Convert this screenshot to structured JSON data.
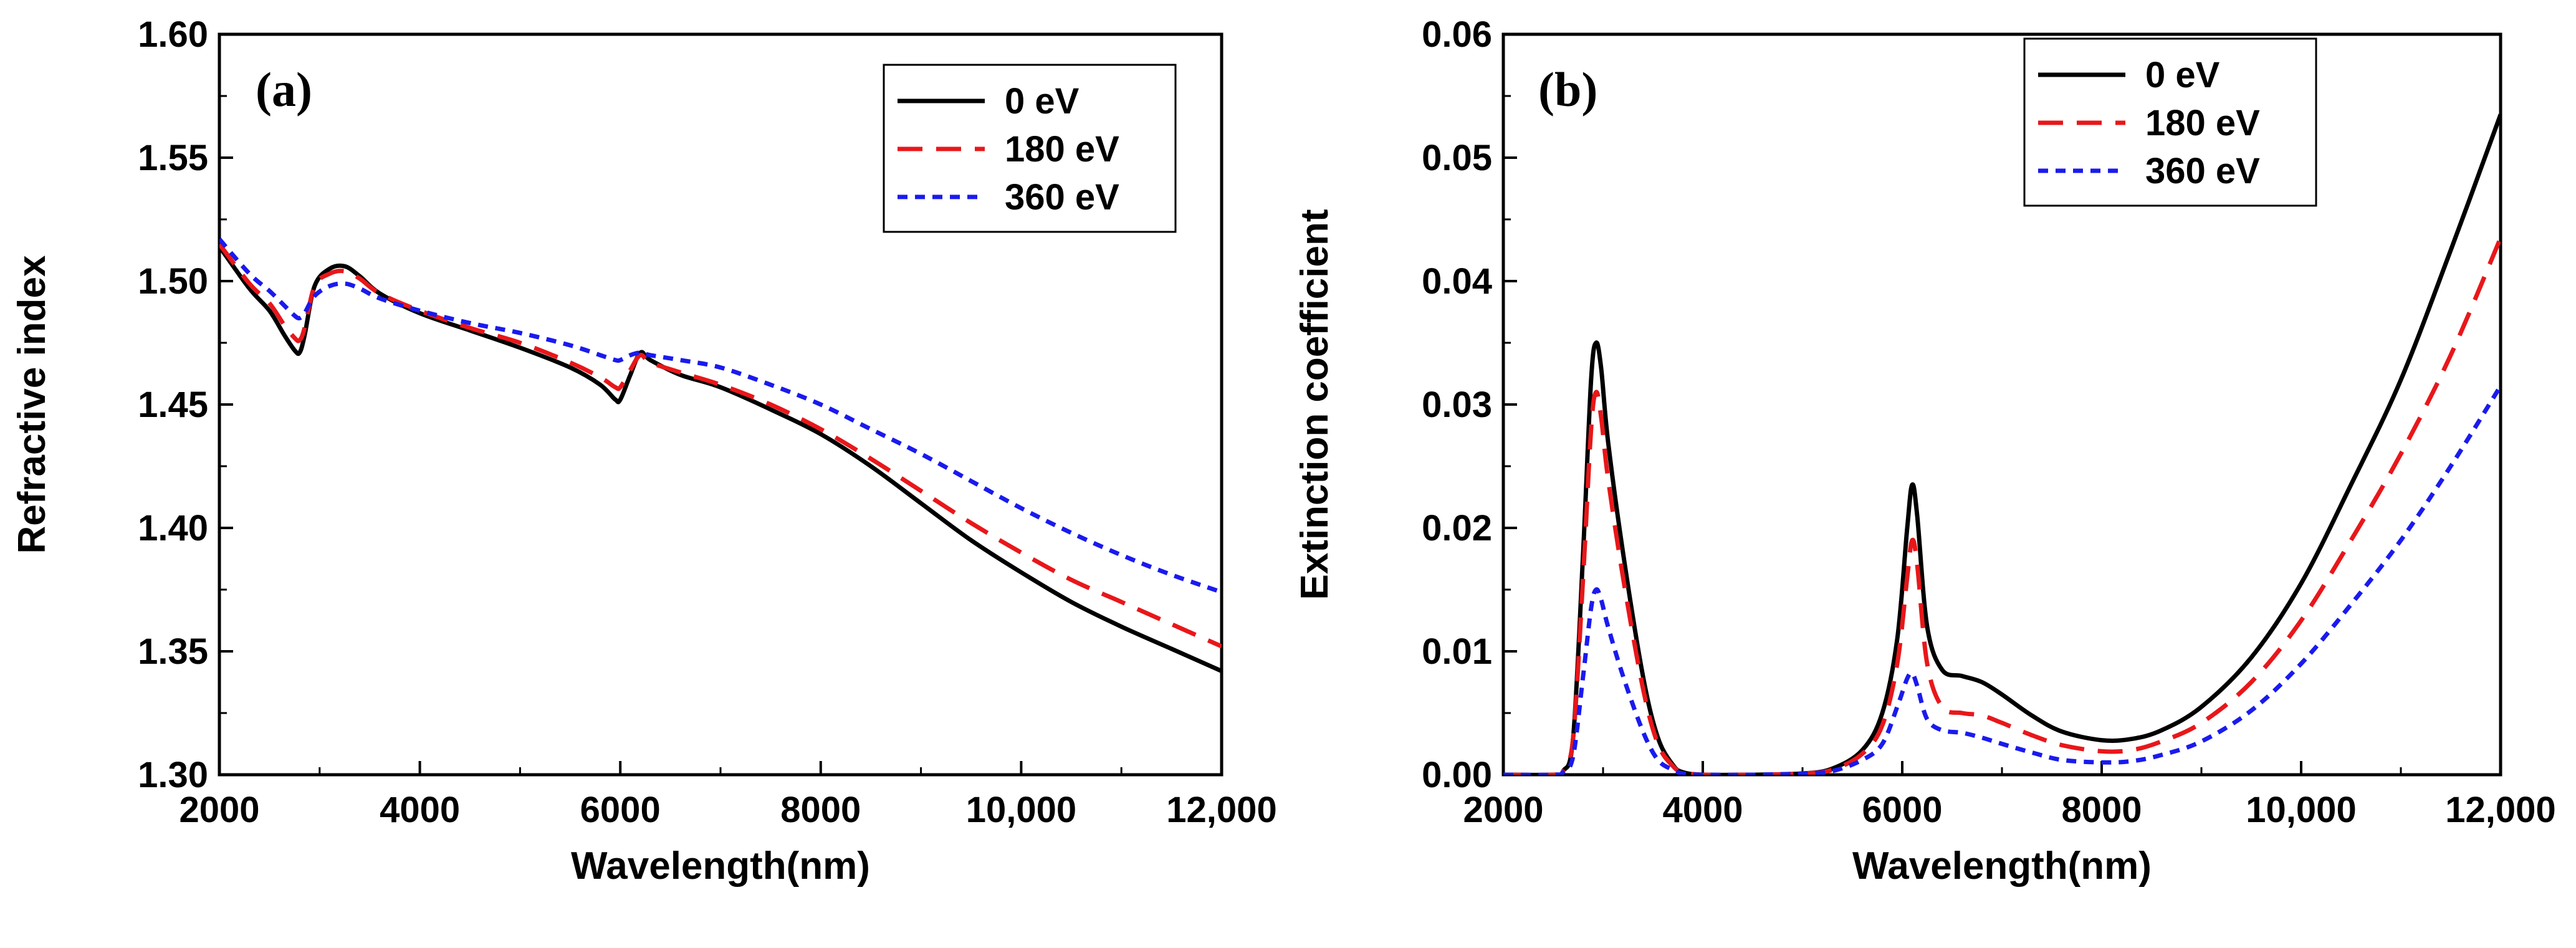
{
  "chart_data": [
    {
      "type": "line",
      "panel_label": "(a)",
      "xlabel": "Wavelength(nm)",
      "ylabel": "Refractive index",
      "xlim": [
        2000,
        12000
      ],
      "ylim": [
        1.3,
        1.6
      ],
      "xticks": [
        2000,
        4000,
        6000,
        8000,
        10000,
        12000
      ],
      "xtick_labels": [
        "2000",
        "4000",
        "6000",
        "8000",
        "10,000",
        "12,000"
      ],
      "yticks": [
        1.3,
        1.35,
        1.4,
        1.45,
        1.5,
        1.55,
        1.6
      ],
      "ytick_labels": [
        "1.30",
        "1.35",
        "1.40",
        "1.45",
        "1.50",
        "1.55",
        "1.60"
      ],
      "legend_position": "top-right",
      "series": [
        {
          "name": "0 eV",
          "color": "#000000",
          "dash": "solid",
          "x": [
            2000,
            2300,
            2500,
            2650,
            2750,
            2800,
            2850,
            2950,
            3100,
            3250,
            3400,
            3600,
            4000,
            4500,
            5000,
            5500,
            5800,
            5950,
            6000,
            6100,
            6200,
            6300,
            6600,
            7000,
            7500,
            8000,
            8500,
            9000,
            9500,
            10000,
            10500,
            11000,
            11500,
            12000
          ],
          "y": [
            1.514,
            1.497,
            1.488,
            1.478,
            1.472,
            1.471,
            1.478,
            1.498,
            1.505,
            1.506,
            1.502,
            1.495,
            1.487,
            1.48,
            1.473,
            1.465,
            1.458,
            1.452,
            1.452,
            1.462,
            1.471,
            1.468,
            1.462,
            1.457,
            1.448,
            1.438,
            1.425,
            1.41,
            1.395,
            1.382,
            1.37,
            1.36,
            1.351,
            1.342
          ]
        },
        {
          "name": "180 eV",
          "color": "#e8171a",
          "dash": "long-dash",
          "x": [
            2000,
            2300,
            2500,
            2650,
            2750,
            2800,
            2850,
            2950,
            3100,
            3250,
            3400,
            3600,
            4000,
            4500,
            5000,
            5500,
            5800,
            5950,
            6000,
            6100,
            6200,
            6300,
            6600,
            7000,
            7500,
            8000,
            8500,
            9000,
            9500,
            10000,
            10500,
            11000,
            11500,
            12000
          ],
          "y": [
            1.515,
            1.499,
            1.491,
            1.482,
            1.477,
            1.476,
            1.481,
            1.498,
            1.503,
            1.504,
            1.501,
            1.495,
            1.488,
            1.481,
            1.475,
            1.467,
            1.461,
            1.457,
            1.457,
            1.464,
            1.47,
            1.467,
            1.463,
            1.458,
            1.45,
            1.44,
            1.428,
            1.415,
            1.402,
            1.39,
            1.379,
            1.37,
            1.361,
            1.352
          ]
        },
        {
          "name": "360 eV",
          "color": "#1a1aee",
          "dash": "short-dash",
          "x": [
            2000,
            2300,
            2500,
            2650,
            2750,
            2800,
            2850,
            2950,
            3100,
            3250,
            3400,
            3600,
            4000,
            4500,
            5000,
            5500,
            5800,
            5950,
            6000,
            6100,
            6200,
            6300,
            6600,
            7000,
            7500,
            8000,
            8500,
            9000,
            9500,
            10000,
            10500,
            11000,
            11500,
            12000
          ],
          "y": [
            1.517,
            1.503,
            1.496,
            1.49,
            1.486,
            1.485,
            1.487,
            1.494,
            1.498,
            1.499,
            1.497,
            1.493,
            1.488,
            1.483,
            1.479,
            1.474,
            1.47,
            1.468,
            1.468,
            1.47,
            1.471,
            1.47,
            1.468,
            1.465,
            1.458,
            1.45,
            1.44,
            1.43,
            1.419,
            1.408,
            1.398,
            1.389,
            1.381,
            1.374
          ]
        }
      ]
    },
    {
      "type": "line",
      "panel_label": "(b)",
      "xlabel": "Wavelength(nm)",
      "ylabel": "Extinction coefficient",
      "xlim": [
        2000,
        12000
      ],
      "ylim": [
        0.0,
        0.06
      ],
      "xticks": [
        2000,
        4000,
        6000,
        8000,
        10000,
        12000
      ],
      "xtick_labels": [
        "2000",
        "4000",
        "6000",
        "8000",
        "10,000",
        "12,000"
      ],
      "yticks": [
        0.0,
        0.01,
        0.02,
        0.03,
        0.04,
        0.05,
        0.06
      ],
      "ytick_labels": [
        "0.00",
        "0.01",
        "0.02",
        "0.03",
        "0.04",
        "0.05",
        "0.06"
      ],
      "legend_position": "top-center",
      "series": [
        {
          "name": "0 eV",
          "color": "#000000",
          "dash": "solid",
          "x": [
            2000,
            2500,
            2600,
            2700,
            2800,
            2880,
            2930,
            2980,
            3050,
            3200,
            3400,
            3550,
            3700,
            3800,
            4000,
            4500,
            5000,
            5300,
            5600,
            5800,
            5950,
            6050,
            6100,
            6150,
            6250,
            6400,
            6600,
            6800,
            7000,
            7300,
            7600,
            8000,
            8300,
            8600,
            9000,
            9500,
            10000,
            10500,
            11000,
            11500,
            12000
          ],
          "y": [
            0.0,
            0.0,
            0.0003,
            0.003,
            0.018,
            0.032,
            0.035,
            0.033,
            0.027,
            0.018,
            0.008,
            0.003,
            0.0008,
            0.0002,
            0.0,
            0.0,
            0.0001,
            0.0005,
            0.002,
            0.005,
            0.011,
            0.02,
            0.0235,
            0.021,
            0.012,
            0.0085,
            0.008,
            0.0075,
            0.0065,
            0.0048,
            0.0035,
            0.0028,
            0.0029,
            0.0036,
            0.0055,
            0.0095,
            0.0155,
            0.0235,
            0.032,
            0.0425,
            0.0535
          ]
        },
        {
          "name": "180 eV",
          "color": "#e8171a",
          "dash": "long-dash",
          "x": [
            2000,
            2500,
            2600,
            2700,
            2800,
            2880,
            2930,
            2980,
            3050,
            3200,
            3400,
            3550,
            3700,
            3800,
            4000,
            4500,
            5000,
            5300,
            5600,
            5800,
            5950,
            6050,
            6100,
            6150,
            6250,
            6400,
            6600,
            6800,
            7000,
            7300,
            7600,
            8000,
            8300,
            8600,
            9000,
            9500,
            10000,
            10500,
            11000,
            11500,
            12000
          ],
          "y": [
            0.0,
            0.0,
            0.0003,
            0.003,
            0.016,
            0.028,
            0.031,
            0.029,
            0.024,
            0.016,
            0.007,
            0.0025,
            0.0007,
            0.0002,
            0.0,
            0.0,
            0.0001,
            0.0004,
            0.0017,
            0.004,
            0.009,
            0.016,
            0.019,
            0.017,
            0.009,
            0.0055,
            0.005,
            0.0048,
            0.0042,
            0.0032,
            0.0024,
            0.0019,
            0.002,
            0.0027,
            0.0042,
            0.0075,
            0.0125,
            0.019,
            0.026,
            0.034,
            0.0435
          ]
        },
        {
          "name": "360 eV",
          "color": "#1a1aee",
          "dash": "short-dash",
          "x": [
            2000,
            2500,
            2600,
            2700,
            2800,
            2880,
            2930,
            2980,
            3050,
            3200,
            3400,
            3550,
            3700,
            3800,
            4000,
            4500,
            5000,
            5300,
            5600,
            5800,
            5950,
            6050,
            6100,
            6150,
            6250,
            6400,
            6600,
            6800,
            7000,
            7300,
            7600,
            8000,
            8300,
            8600,
            9000,
            9500,
            10000,
            10500,
            11000,
            11500,
            12000
          ],
          "y": [
            0.0,
            0.0,
            0.0002,
            0.0015,
            0.008,
            0.0135,
            0.015,
            0.0142,
            0.012,
            0.008,
            0.0035,
            0.0012,
            0.0004,
            0.0001,
            0.0,
            0.0,
            0.0001,
            0.0003,
            0.0012,
            0.0025,
            0.0055,
            0.0078,
            0.0082,
            0.0072,
            0.0045,
            0.0036,
            0.0034,
            0.003,
            0.0025,
            0.0018,
            0.0012,
            0.001,
            0.0011,
            0.0016,
            0.0027,
            0.0052,
            0.009,
            0.0138,
            0.019,
            0.025,
            0.0315
          ]
        }
      ]
    }
  ]
}
